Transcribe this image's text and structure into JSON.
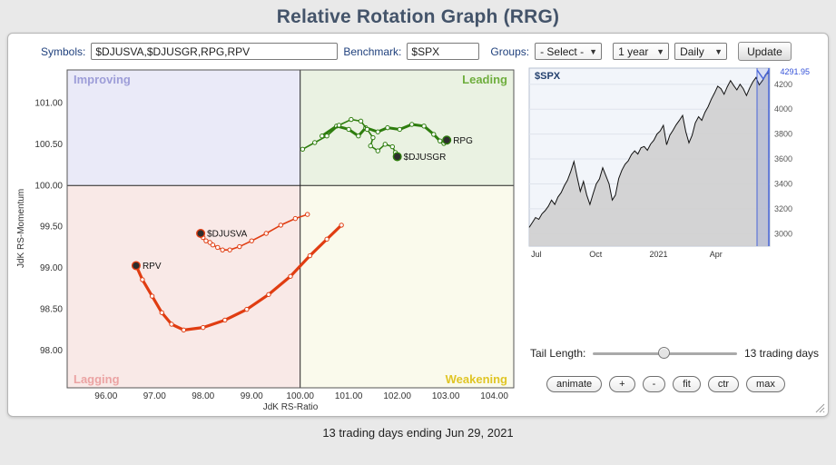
{
  "page": {
    "title": "Relative Rotation Graph (RRG)",
    "footer": "13 trading days ending Jun 29, 2021"
  },
  "toolbar": {
    "symbols_label": "Symbols:",
    "symbols_value": "$DJUSVA,$DJUSGR,RPG,RPV",
    "benchmark_label": "Benchmark:",
    "benchmark_value": "$SPX",
    "groups_label": "Groups:",
    "groups_select": "- Select -",
    "range_select": "1 year",
    "freq_select": "Daily",
    "update_label": "Update"
  },
  "controls": {
    "tail_label": "Tail Length:",
    "tail_value": "13 trading days",
    "buttons": [
      "animate",
      "+",
      "-",
      "fit",
      "ctr",
      "max"
    ]
  },
  "chart_data": [
    {
      "type": "scatter",
      "title": "RRG quadrant chart",
      "xlabel": "JdK RS-Ratio",
      "ylabel": "JdK RS-Momentum",
      "xlim": [
        95.2,
        104.4
      ],
      "ylim": [
        97.55,
        101.4
      ],
      "center": [
        100,
        100
      ],
      "x_ticks": [
        96,
        97,
        98,
        99,
        100,
        101,
        102,
        103,
        104
      ],
      "y_ticks": [
        98,
        98.5,
        99,
        99.5,
        100,
        100.5,
        101
      ],
      "grid": false,
      "quadrants": {
        "improving": {
          "label": "Improving",
          "color": "#9d9dd8",
          "bg": "#eaeaf8"
        },
        "leading": {
          "label": "Leading",
          "color": "#6fae3e",
          "bg": "#eaf2e2"
        },
        "lagging": {
          "label": "Lagging",
          "color": "#eba3a3",
          "bg": "#f9e9e7"
        },
        "weakening": {
          "label": "Weakening",
          "color": "#e0c525",
          "bg": "#fafaec"
        }
      },
      "series": [
        {
          "name": "RPG",
          "color": "#2e7d0e",
          "width": 3,
          "points": [
            [
              100.45,
              100.6
            ],
            [
              100.75,
              100.72
            ],
            [
              101.0,
              100.68
            ],
            [
              101.2,
              100.6
            ],
            [
              101.35,
              100.7
            ],
            [
              101.6,
              100.65
            ],
            [
              101.8,
              100.7
            ],
            [
              102.05,
              100.68
            ],
            [
              102.3,
              100.74
            ],
            [
              102.55,
              100.72
            ],
            [
              102.75,
              100.62
            ],
            [
              102.88,
              100.54
            ],
            [
              102.96,
              100.51
            ],
            [
              103.02,
              100.55
            ]
          ]
        },
        {
          "name": "$DJUSGR",
          "color": "#2e7d0e",
          "width": 1.6,
          "points": [
            [
              100.05,
              100.44
            ],
            [
              100.3,
              100.52
            ],
            [
              100.55,
              100.6
            ],
            [
              100.8,
              100.73
            ],
            [
              101.05,
              100.8
            ],
            [
              101.25,
              100.78
            ],
            [
              101.38,
              100.68
            ],
            [
              101.5,
              100.58
            ],
            [
              101.45,
              100.48
            ],
            [
              101.6,
              100.42
            ],
            [
              101.75,
              100.5
            ],
            [
              101.9,
              100.47
            ],
            [
              101.96,
              100.4
            ],
            [
              102.0,
              100.35
            ]
          ]
        },
        {
          "name": "$DJUSVA",
          "color": "#e03d12",
          "width": 1.6,
          "points": [
            [
              100.15,
              99.65
            ],
            [
              99.9,
              99.6
            ],
            [
              99.6,
              99.52
            ],
            [
              99.3,
              99.42
            ],
            [
              99.0,
              99.33
            ],
            [
              98.75,
              99.26
            ],
            [
              98.55,
              99.22
            ],
            [
              98.4,
              99.22
            ],
            [
              98.3,
              99.25
            ],
            [
              98.2,
              99.28
            ],
            [
              98.14,
              99.31
            ],
            [
              98.06,
              99.33
            ],
            [
              98.0,
              99.37
            ],
            [
              97.95,
              99.42
            ]
          ]
        },
        {
          "name": "RPV",
          "color": "#e03d12",
          "width": 3.2,
          "points": [
            [
              100.85,
              99.52
            ],
            [
              100.55,
              99.35
            ],
            [
              100.2,
              99.15
            ],
            [
              99.8,
              98.9
            ],
            [
              99.35,
              98.68
            ],
            [
              98.9,
              98.5
            ],
            [
              98.45,
              98.37
            ],
            [
              98.0,
              98.28
            ],
            [
              97.6,
              98.25
            ],
            [
              97.35,
              98.32
            ],
            [
              97.15,
              98.46
            ],
            [
              96.95,
              98.66
            ],
            [
              96.75,
              98.86
            ],
            [
              96.62,
              99.03
            ]
          ]
        }
      ]
    },
    {
      "type": "area",
      "title": "$SPX",
      "last_value": "4291.95",
      "ylim": [
        2900,
        4330
      ],
      "y_ticks": [
        3000,
        3200,
        3400,
        3600,
        3800,
        4000,
        4200
      ],
      "x_labels": [
        "Jul",
        "Oct",
        "2021",
        "Apr"
      ],
      "line_color": "#111111",
      "fill_color": "#cfcfcf",
      "band_color": "#4a66d8",
      "values": [
        3050,
        3090,
        3130,
        3115,
        3160,
        3185,
        3220,
        3270,
        3235,
        3295,
        3330,
        3385,
        3430,
        3500,
        3580,
        3455,
        3340,
        3420,
        3310,
        3235,
        3320,
        3400,
        3440,
        3530,
        3465,
        3400,
        3270,
        3310,
        3443,
        3510,
        3557,
        3585,
        3635,
        3665,
        3640,
        3690,
        3700,
        3670,
        3720,
        3750,
        3800,
        3825,
        3870,
        3714,
        3790,
        3830,
        3875,
        3910,
        3950,
        3820,
        3730,
        3790,
        3890,
        3940,
        3910,
        3975,
        4020,
        4080,
        4130,
        4185,
        4165,
        4120,
        4180,
        4230,
        4190,
        4155,
        4200,
        4165,
        4110,
        4170,
        4220,
        4255,
        4195,
        4230,
        4280,
        4291.95
      ]
    }
  ]
}
